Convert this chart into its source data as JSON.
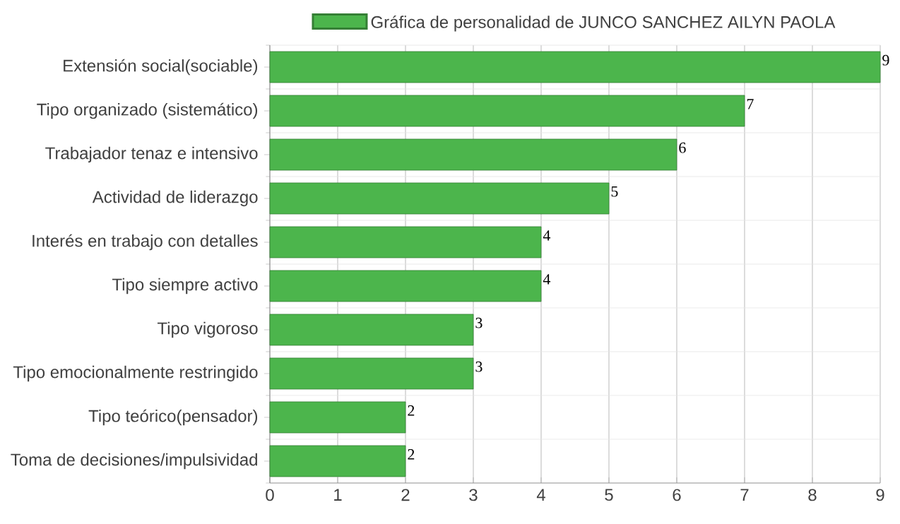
{
  "chart_data": {
    "type": "bar",
    "orientation": "horizontal",
    "categories": [
      "Extensión social(sociable)",
      "Tipo organizado (sistemático)",
      "Trabajador tenaz e intensivo",
      "Actividad de liderazgo",
      "Interés en trabajo con detalles",
      "Tipo siempre activo",
      "Tipo vigoroso",
      "Tipo emocionalmente restringido",
      "Tipo teórico(pensador)",
      "Toma de decisiones/impulsividad"
    ],
    "series": [
      {
        "name": "Gráfica de personalidad de JUNCO SANCHEZ AILYN PAOLA",
        "color": "#4cb54c",
        "values": [
          9,
          7,
          6,
          5,
          4,
          4,
          3,
          3,
          2,
          2
        ]
      }
    ],
    "xlim": [
      0,
      9
    ],
    "xticks": [
      0,
      1,
      2,
      3,
      4,
      5,
      6,
      7,
      8,
      9
    ],
    "grid": true,
    "legend": "top",
    "data_labels": true
  }
}
